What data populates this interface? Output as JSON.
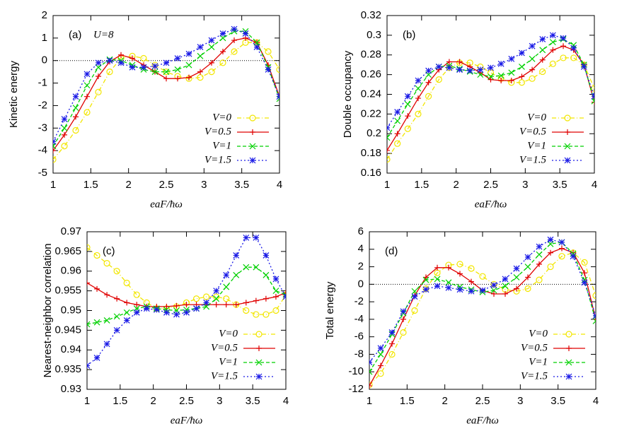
{
  "chart_data": [
    {
      "type": "line",
      "panel_label": "(a)",
      "annotation": "U=8",
      "xlabel": "eaF/ħω",
      "ylabel": "Kinetic energy",
      "x": [
        1.0,
        1.15,
        1.3,
        1.45,
        1.6,
        1.75,
        1.9,
        2.05,
        2.2,
        2.35,
        2.5,
        2.65,
        2.8,
        2.95,
        3.1,
        3.25,
        3.4,
        3.55,
        3.7,
        3.85,
        4.0
      ],
      "xlim": [
        1,
        4
      ],
      "xticks": [
        1,
        1.5,
        2,
        2.5,
        3,
        3.5,
        4
      ],
      "ylim": [
        -5,
        2
      ],
      "yticks": [
        -5,
        -4,
        -3,
        -2,
        -1,
        0,
        1,
        2
      ],
      "zero_line": true,
      "legend": "lower right",
      "series": [
        {
          "name": "V=0",
          "color": "#f2e600",
          "marker": "circle",
          "dash": "6 3 1 3",
          "values": [
            -4.4,
            -3.8,
            -3.1,
            -2.3,
            -1.4,
            -0.5,
            0.1,
            0.2,
            0.1,
            -0.2,
            -0.5,
            -0.7,
            -0.8,
            -0.75,
            -0.5,
            -0.1,
            0.4,
            0.8,
            0.8,
            0.4,
            -0.4
          ]
        },
        {
          "name": "V=0.5",
          "color": "#e00000",
          "marker": "plus",
          "dash": "none",
          "values": [
            -4.0,
            -3.3,
            -2.5,
            -1.6,
            -0.7,
            -0.05,
            0.25,
            0.1,
            -0.2,
            -0.5,
            -0.8,
            -0.8,
            -0.75,
            -0.5,
            -0.1,
            0.4,
            0.9,
            1.0,
            0.8,
            -0.2,
            -1.6
          ]
        },
        {
          "name": "V=1",
          "color": "#00d000",
          "marker": "cross",
          "dash": "5 3",
          "values": [
            -3.8,
            -3.0,
            -2.1,
            -1.1,
            -0.3,
            0.05,
            0.0,
            -0.2,
            -0.4,
            -0.5,
            -0.5,
            -0.4,
            -0.2,
            0.2,
            0.6,
            1.0,
            1.3,
            1.3,
            0.8,
            -0.3,
            -1.7
          ]
        },
        {
          "name": "V=1.5",
          "color": "#1a1ae6",
          "marker": "star",
          "dash": "2 3",
          "values": [
            -3.6,
            -2.6,
            -1.6,
            -0.6,
            -0.1,
            0.0,
            -0.1,
            -0.3,
            -0.3,
            -0.25,
            -0.1,
            0.1,
            0.3,
            0.6,
            0.9,
            1.2,
            1.4,
            1.2,
            0.6,
            -0.4,
            -1.6
          ]
        }
      ]
    },
    {
      "type": "line",
      "panel_label": "(b)",
      "xlabel": "eaF/ħω",
      "ylabel": "Double occupancy",
      "x": [
        1.0,
        1.15,
        1.3,
        1.45,
        1.6,
        1.75,
        1.9,
        2.05,
        2.2,
        2.35,
        2.5,
        2.65,
        2.8,
        2.95,
        3.1,
        3.25,
        3.4,
        3.55,
        3.7,
        3.85,
        4.0
      ],
      "xlim": [
        1,
        4
      ],
      "xticks": [
        1,
        1.5,
        2,
        2.5,
        3,
        3.5,
        4
      ],
      "ylim": [
        0.16,
        0.32
      ],
      "yticks": [
        0.16,
        0.18,
        0.2,
        0.22,
        0.24,
        0.26,
        0.28,
        0.3,
        0.32
      ],
      "zero_line": false,
      "legend": "lower right",
      "series": [
        {
          "name": "V=0",
          "color": "#f2e600",
          "marker": "circle",
          "dash": "6 3 1 3",
          "values": [
            0.174,
            0.19,
            0.205,
            0.22,
            0.238,
            0.255,
            0.267,
            0.272,
            0.272,
            0.268,
            0.262,
            0.256,
            0.252,
            0.252,
            0.256,
            0.263,
            0.271,
            0.277,
            0.277,
            0.27,
            0.246
          ]
        },
        {
          "name": "V=0.5",
          "color": "#e00000",
          "marker": "plus",
          "dash": "none",
          "values": [
            0.183,
            0.2,
            0.218,
            0.236,
            0.252,
            0.265,
            0.273,
            0.273,
            0.268,
            0.262,
            0.255,
            0.254,
            0.254,
            0.258,
            0.265,
            0.275,
            0.285,
            0.289,
            0.285,
            0.27,
            0.232
          ]
        },
        {
          "name": "V=1",
          "color": "#00d000",
          "marker": "cross",
          "dash": "5 3",
          "values": [
            0.196,
            0.213,
            0.23,
            0.246,
            0.26,
            0.268,
            0.269,
            0.266,
            0.263,
            0.26,
            0.258,
            0.259,
            0.262,
            0.268,
            0.276,
            0.285,
            0.293,
            0.296,
            0.29,
            0.27,
            0.233
          ]
        },
        {
          "name": "V=1.5",
          "color": "#1a1ae6",
          "marker": "star",
          "dash": "2 3",
          "values": [
            0.206,
            0.222,
            0.238,
            0.254,
            0.264,
            0.268,
            0.267,
            0.265,
            0.264,
            0.265,
            0.267,
            0.271,
            0.276,
            0.282,
            0.289,
            0.296,
            0.3,
            0.297,
            0.287,
            0.268,
            0.238
          ]
        }
      ]
    },
    {
      "type": "line",
      "panel_label": "(c)",
      "xlabel": "eaF/ħω",
      "ylabel": "Nearest-neighbor correlation",
      "x": [
        1.0,
        1.15,
        1.3,
        1.45,
        1.6,
        1.75,
        1.9,
        2.05,
        2.2,
        2.35,
        2.5,
        2.65,
        2.8,
        2.95,
        3.1,
        3.25,
        3.4,
        3.55,
        3.7,
        3.85,
        4.0
      ],
      "xlim": [
        1,
        4
      ],
      "xticks": [
        1,
        1.5,
        2,
        2.5,
        3,
        3.5,
        4
      ],
      "ylim": [
        0.93,
        0.97
      ],
      "yticks": [
        0.93,
        0.935,
        0.94,
        0.945,
        0.95,
        0.955,
        0.96,
        0.965,
        0.97
      ],
      "zero_line": false,
      "legend": "lower right",
      "series": [
        {
          "name": "V=0",
          "color": "#f2e600",
          "marker": "circle",
          "dash": "6 3 1 3",
          "values": [
            0.966,
            0.964,
            0.962,
            0.96,
            0.957,
            0.954,
            0.952,
            0.9505,
            0.9505,
            0.951,
            0.952,
            0.953,
            0.9535,
            0.9535,
            0.953,
            0.9515,
            0.95,
            0.949,
            0.949,
            0.95,
            0.954
          ]
        },
        {
          "name": "V=0.5",
          "color": "#e00000",
          "marker": "plus",
          "dash": "none",
          "values": [
            0.957,
            0.9555,
            0.954,
            0.953,
            0.952,
            0.9515,
            0.951,
            0.951,
            0.951,
            0.9512,
            0.9515,
            0.9515,
            0.9515,
            0.9515,
            0.9515,
            0.9515,
            0.952,
            0.9525,
            0.953,
            0.9535,
            0.9545
          ]
        },
        {
          "name": "V=1",
          "color": "#00d000",
          "marker": "cross",
          "dash": "5 3",
          "values": [
            0.9465,
            0.947,
            0.9475,
            0.9485,
            0.9495,
            0.9505,
            0.951,
            0.9505,
            0.9502,
            0.95,
            0.9502,
            0.9505,
            0.951,
            0.953,
            0.956,
            0.959,
            0.961,
            0.961,
            0.959,
            0.955,
            0.954
          ]
        },
        {
          "name": "V=1.5",
          "color": "#1a1ae6",
          "marker": "star",
          "dash": "2 3",
          "values": [
            0.936,
            0.938,
            0.9415,
            0.945,
            0.9475,
            0.9495,
            0.9505,
            0.9502,
            0.9495,
            0.949,
            0.9495,
            0.9505,
            0.952,
            0.955,
            0.959,
            0.964,
            0.9685,
            0.9685,
            0.964,
            0.958,
            0.9535
          ]
        }
      ]
    },
    {
      "type": "line",
      "panel_label": "(d)",
      "xlabel": "eaF/ħω",
      "ylabel": "Total energy",
      "x": [
        1.0,
        1.15,
        1.3,
        1.45,
        1.6,
        1.75,
        1.9,
        2.05,
        2.2,
        2.35,
        2.5,
        2.65,
        2.8,
        2.95,
        3.1,
        3.25,
        3.4,
        3.55,
        3.7,
        3.85,
        4.0
      ],
      "xlim": [
        1,
        4
      ],
      "xticks": [
        1,
        1.5,
        2,
        2.5,
        3,
        3.5,
        4
      ],
      "ylim": [
        -12,
        6
      ],
      "yticks": [
        -12,
        -10,
        -8,
        -6,
        -4,
        -2,
        0,
        2,
        4,
        6
      ],
      "zero_line": true,
      "legend": "lower right",
      "series": [
        {
          "name": "V=0",
          "color": "#f2e600",
          "marker": "circle",
          "dash": "6 3 1 3",
          "values": [
            -11.5,
            -10.2,
            -8,
            -5.5,
            -3,
            -0.5,
            1.3,
            2.2,
            2.3,
            1.8,
            0.9,
            0,
            -0.6,
            -0.8,
            -0.5,
            0.5,
            2,
            3.2,
            3.6,
            2.5,
            -1.3
          ]
        },
        {
          "name": "V=0.5",
          "color": "#e00000",
          "marker": "plus",
          "dash": "none",
          "values": [
            -11.6,
            -9.3,
            -6.8,
            -4,
            -1.3,
            0.8,
            1.9,
            1.9,
            1.2,
            0.3,
            -0.7,
            -1.1,
            -1.1,
            -0.5,
            0.8,
            2.3,
            3.6,
            4.1,
            3.6,
            1.3,
            -4.0
          ]
        },
        {
          "name": "V=1",
          "color": "#00d000",
          "marker": "cross",
          "dash": "5 3",
          "values": [
            -10,
            -8,
            -5.7,
            -3.3,
            -0.8,
            0.5,
            0.6,
            0.2,
            -0.3,
            -0.6,
            -0.9,
            -0.7,
            -0.2,
            0.8,
            2,
            3.4,
            4.6,
            4.8,
            3.5,
            0.5,
            -4.2
          ]
        },
        {
          "name": "V=1.5",
          "color": "#1a1ae6",
          "marker": "star",
          "dash": "2 3",
          "values": [
            -8.9,
            -7.3,
            -5.5,
            -3.1,
            -1.4,
            -0.6,
            -0.2,
            -0.4,
            -0.6,
            -0.8,
            -0.7,
            -0.1,
            0.6,
            1.8,
            3.1,
            4.3,
            5.1,
            4.8,
            3.2,
            0.2,
            -3.6
          ]
        }
      ]
    }
  ]
}
